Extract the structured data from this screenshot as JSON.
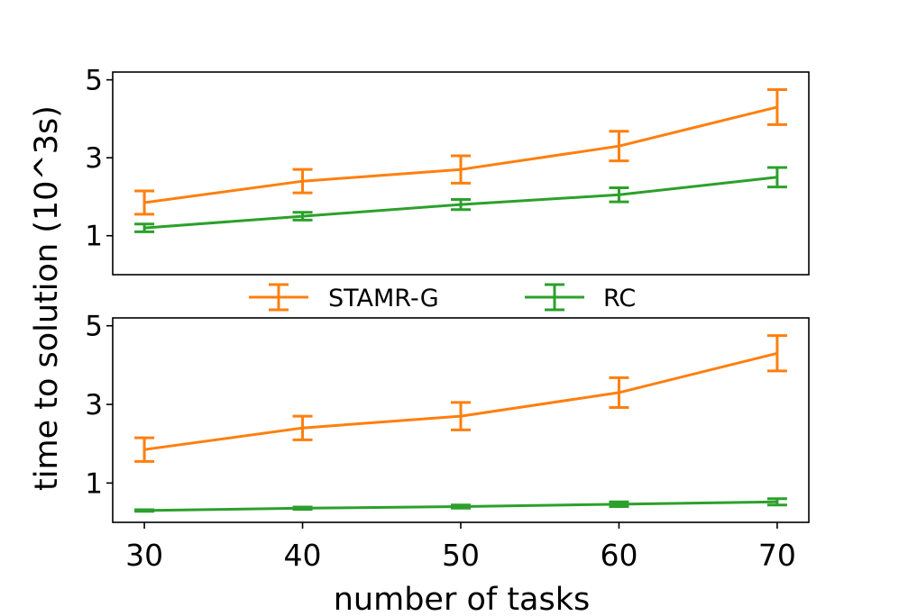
{
  "figure": {
    "ylabel": "time to solution (10^3s)",
    "xlabel": "number of tasks"
  },
  "legend": {
    "placement": "between-panels",
    "entries": [
      {
        "label": "STAMR-G",
        "color": "#ff7f0e"
      },
      {
        "label": "RC",
        "color": "#2ca02c"
      }
    ]
  },
  "chart_data": [
    {
      "type": "line",
      "panel": "top",
      "x": [
        30,
        40,
        50,
        60,
        70
      ],
      "xlim": [
        28,
        72
      ],
      "ylim": [
        0,
        5.2
      ],
      "yticks": [
        1,
        3,
        5
      ],
      "series": [
        {
          "name": "STAMR-G",
          "color": "#ff7f0e",
          "values": [
            1.85,
            2.4,
            2.7,
            3.3,
            4.3
          ],
          "err": [
            0.3,
            0.3,
            0.35,
            0.38,
            0.45
          ]
        },
        {
          "name": "RC",
          "color": "#2ca02c",
          "values": [
            1.2,
            1.5,
            1.8,
            2.05,
            2.5
          ],
          "err": [
            0.1,
            0.1,
            0.13,
            0.18,
            0.25
          ]
        }
      ]
    },
    {
      "type": "line",
      "panel": "bottom",
      "x": [
        30,
        40,
        50,
        60,
        70
      ],
      "xlim": [
        28,
        72
      ],
      "xticks": [
        30,
        40,
        50,
        60,
        70
      ],
      "ylim": [
        0,
        5.2
      ],
      "yticks": [
        1,
        3,
        5
      ],
      "series": [
        {
          "name": "STAMR-G",
          "color": "#ff7f0e",
          "values": [
            1.85,
            2.4,
            2.7,
            3.3,
            4.3
          ],
          "err": [
            0.3,
            0.3,
            0.35,
            0.38,
            0.45
          ]
        },
        {
          "name": "RC",
          "color": "#2ca02c",
          "values": [
            0.3,
            0.36,
            0.4,
            0.46,
            0.52
          ],
          "err": [
            0.02,
            0.03,
            0.04,
            0.06,
            0.08
          ]
        }
      ]
    }
  ]
}
